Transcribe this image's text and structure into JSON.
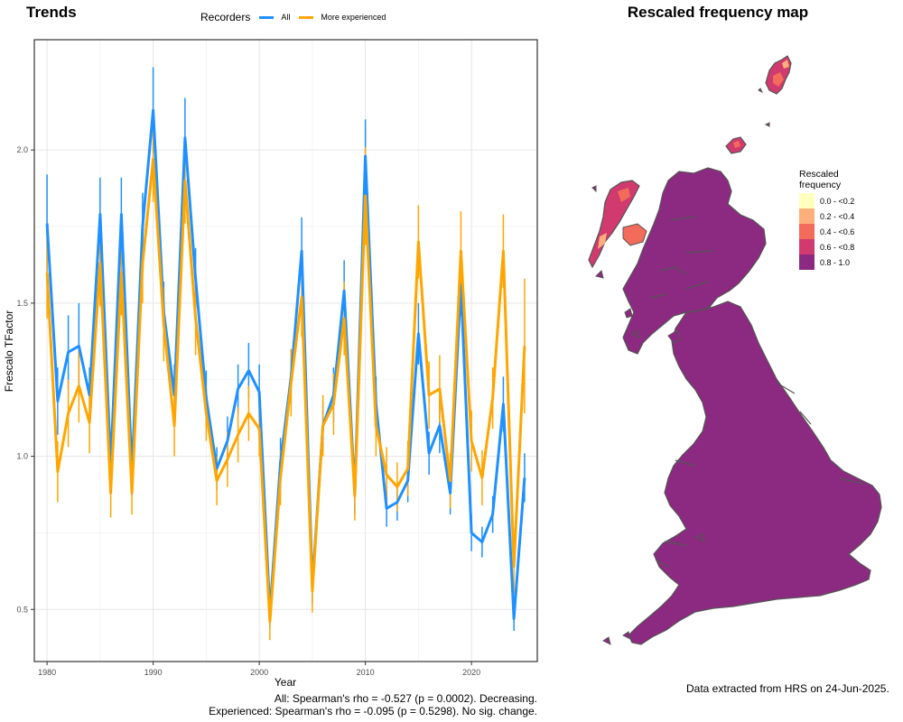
{
  "trends": {
    "title": "Trends",
    "legend_title": "Recorders",
    "xlabel": "Year",
    "ylabel": "Frescalo TFactor",
    "stats_all": "All: Spearman's rho = -0.527 (p = 0.0002). Decreasing.",
    "stats_experienced": "Experienced: Spearman's rho = -0.095 (p = 0.5298). No sig. change."
  },
  "chart_data": {
    "type": "line",
    "title": "Trends",
    "xlabel": "Year",
    "ylabel": "Frescalo TFactor",
    "xlim": [
      1978.8,
      2026.2
    ],
    "ylim": [
      0.33,
      2.36
    ],
    "xticks": [
      1980,
      1990,
      2000,
      2010,
      2020
    ],
    "yticks": [
      0.5,
      1.0,
      1.5,
      2.0
    ],
    "ytick_labels": [
      "0.5",
      "1.0",
      "1.5",
      "2.0"
    ],
    "grid": true,
    "legend_position": "top",
    "x": [
      1980,
      1981,
      1982,
      1983,
      1984,
      1985,
      1986,
      1987,
      1988,
      1989,
      1990,
      1991,
      1992,
      1993,
      1994,
      1995,
      1996,
      1997,
      1998,
      1999,
      2000,
      2001,
      2002,
      2003,
      2004,
      2005,
      2006,
      2007,
      2008,
      2009,
      2010,
      2011,
      2012,
      2013,
      2014,
      2015,
      2016,
      2017,
      2018,
      2019,
      2020,
      2021,
      2022,
      2023,
      2024,
      2025
    ],
    "series": [
      {
        "name": "All",
        "color": "#1e90ff",
        "values": [
          1.76,
          1.18,
          1.34,
          1.36,
          1.2,
          1.79,
          0.97,
          1.79,
          0.95,
          1.75,
          2.13,
          1.47,
          1.2,
          2.04,
          1.58,
          1.19,
          0.96,
          1.05,
          1.22,
          1.28,
          1.21,
          0.49,
          0.98,
          1.26,
          1.67,
          0.58,
          1.1,
          1.2,
          1.54,
          0.88,
          1.98,
          1.17,
          0.83,
          0.85,
          0.92,
          1.4,
          1.01,
          1.1,
          0.88,
          1.56,
          0.75,
          0.72,
          0.81,
          1.17,
          0.47,
          0.93
        ],
        "errors": [
          0.16,
          0.11,
          0.12,
          0.14,
          0.09,
          0.12,
          0.08,
          0.12,
          0.08,
          0.11,
          0.14,
          0.1,
          0.1,
          0.13,
          0.1,
          0.09,
          0.07,
          0.08,
          0.08,
          0.09,
          0.09,
          0.05,
          0.08,
          0.09,
          0.11,
          0.06,
          0.08,
          0.09,
          0.1,
          0.07,
          0.12,
          0.09,
          0.06,
          0.06,
          0.07,
          0.1,
          0.07,
          0.09,
          0.07,
          0.1,
          0.06,
          0.05,
          0.06,
          0.09,
          0.04,
          0.08
        ]
      },
      {
        "name": "More experienced",
        "color": "#ffa500",
        "values": [
          1.6,
          0.95,
          1.14,
          1.23,
          1.11,
          1.63,
          0.88,
          1.6,
          0.88,
          1.63,
          1.97,
          1.43,
          1.1,
          1.9,
          1.45,
          1.14,
          0.92,
          0.99,
          1.07,
          1.14,
          1.09,
          0.46,
          0.93,
          1.24,
          1.52,
          0.56,
          1.1,
          1.17,
          1.45,
          0.87,
          1.85,
          1.1,
          0.94,
          0.9,
          0.96,
          1.7,
          1.2,
          1.22,
          0.92,
          1.67,
          1.05,
          0.93,
          1.19,
          1.67,
          0.64,
          1.36
        ],
        "errors": [
          0.15,
          0.1,
          0.11,
          0.12,
          0.1,
          0.14,
          0.08,
          0.14,
          0.07,
          0.13,
          0.14,
          0.12,
          0.1,
          0.14,
          0.12,
          0.09,
          0.08,
          0.09,
          0.09,
          0.09,
          0.09,
          0.06,
          0.09,
          0.11,
          0.13,
          0.07,
          0.1,
          0.1,
          0.12,
          0.08,
          0.16,
          0.1,
          0.09,
          0.08,
          0.09,
          0.12,
          0.11,
          0.11,
          0.09,
          0.13,
          0.1,
          0.09,
          0.1,
          0.12,
          0.09,
          0.22
        ]
      }
    ]
  },
  "map": {
    "title": "Rescaled frequency map",
    "legend_title": "Rescaled\nfrequency",
    "legend": [
      {
        "label": "0.0 - <0.2",
        "color": "#ffffbf"
      },
      {
        "label": "0.2 - <0.4",
        "color": "#fdae7a"
      },
      {
        "label": "0.4 - <0.6",
        "color": "#f26b5b"
      },
      {
        "label": "0.6 - <0.8",
        "color": "#d13a6e"
      },
      {
        "label": "0.8 - 1.0",
        "color": "#8b2a80"
      }
    ],
    "note": "Data extracted from HRS on 24-Jun-2025."
  }
}
